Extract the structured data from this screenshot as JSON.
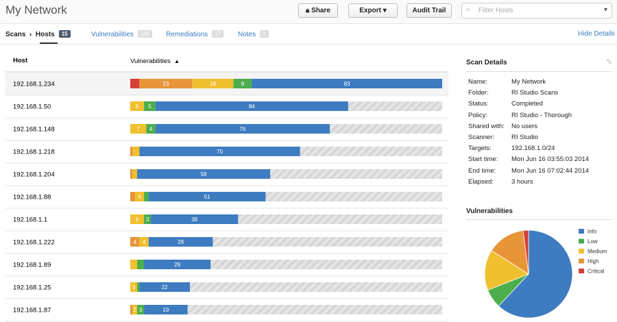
{
  "header": {
    "title": "My Network",
    "share": "Share",
    "export": "Export",
    "audit": "Audit Trail",
    "search_placeholder": "Filter Hosts"
  },
  "tabs": {
    "breadcrumb": "Scans",
    "current": "Hosts",
    "current_count": 15,
    "items": [
      {
        "label": "Vulnerabilities",
        "count": 186
      },
      {
        "label": "Remediations",
        "count": 17
      },
      {
        "label": "Notes",
        "count": 2
      }
    ],
    "toggle": "Hide Details"
  },
  "table": {
    "columns": [
      "Host",
      "Vulnerabilities"
    ],
    "rows": [
      {
        "host": "192.168.1.234",
        "counts": [
          83,
          8,
          18,
          23,
          4
        ],
        "labels": [
          "83",
          "8",
          "18",
          "23",
          null
        ]
      },
      {
        "host": "192.168.1.50",
        "counts": [
          84,
          5,
          6,
          0,
          0
        ],
        "labels": [
          "84",
          "5",
          "6",
          null,
          null
        ]
      },
      {
        "host": "192.168.1.148",
        "counts": [
          76,
          4,
          7,
          0,
          0
        ],
        "labels": [
          "76",
          "4",
          "7",
          null,
          null
        ]
      },
      {
        "host": "192.168.1.218",
        "counts": [
          70,
          0,
          3,
          1,
          0
        ],
        "labels": [
          "70",
          null,
          null,
          null,
          null
        ]
      },
      {
        "host": "192.168.1.204",
        "counts": [
          58,
          0,
          2,
          1,
          0
        ],
        "labels": [
          "58",
          null,
          null,
          null,
          null
        ]
      },
      {
        "host": "192.168.1.88",
        "counts": [
          51,
          2,
          4,
          2,
          0
        ],
        "labels": [
          "51",
          null,
          "4",
          null,
          null
        ]
      },
      {
        "host": "192.168.1.1",
        "counts": [
          38,
          3,
          6,
          0,
          0
        ],
        "labels": [
          "38",
          "3",
          "6",
          null,
          null
        ]
      },
      {
        "host": "192.168.1.222",
        "counts": [
          28,
          0,
          4,
          4,
          0
        ],
        "labels": [
          "28",
          null,
          "4",
          "4",
          null
        ]
      },
      {
        "host": "192.168.1.89",
        "counts": [
          29,
          3,
          3,
          0,
          0
        ],
        "labels": [
          "29",
          null,
          null,
          null,
          null
        ]
      },
      {
        "host": "192.168.1.25",
        "counts": [
          22,
          1,
          3,
          0,
          0
        ],
        "labels": [
          "22",
          null,
          "3",
          null,
          null
        ]
      },
      {
        "host": "192.168.1.87",
        "counts": [
          19,
          3,
          2,
          1,
          0
        ],
        "labels": [
          "19",
          "3",
          "2",
          null,
          null
        ]
      }
    ]
  },
  "details": {
    "title": "Scan Details",
    "fields": [
      [
        "Name:",
        "My Network"
      ],
      [
        "Folder:",
        "RI Studio Scans"
      ],
      [
        "Status:",
        "Completed"
      ],
      [
        "Policy:",
        "RI Studio - Thorough"
      ],
      [
        "Shared with:",
        "No users"
      ],
      [
        "Scanner:",
        "RI Studio"
      ],
      [
        "Targets:",
        "192.168.1.0/24"
      ],
      [
        "Start time:",
        "Mon Jun 16 03:55:03 2014"
      ],
      [
        "End time:",
        "Mon Jun 16 07:02:44 2014"
      ],
      [
        "Elapsed:",
        "3 hours"
      ]
    ]
  },
  "chart_data": {
    "type": "pie",
    "title": "Vulnerabilities",
    "categories": [
      "Info",
      "Low",
      "Medium",
      "High",
      "Critical"
    ],
    "values": [
      62,
      7,
      15,
      14,
      2
    ],
    "colors": [
      "#3e7cc1",
      "#4cae4c",
      "#f0c030",
      "#e8953a",
      "#d43f3a"
    ]
  }
}
